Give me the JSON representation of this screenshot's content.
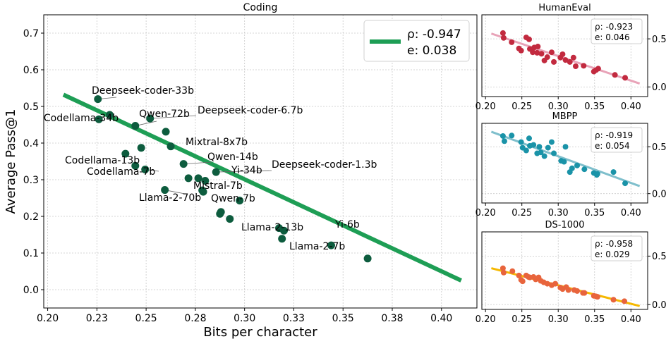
{
  "chart_data": [
    {
      "type": "scatter",
      "title": "Coding",
      "xlabel": "Bits per character",
      "ylabel": "Average Pass@1",
      "xlim": [
        0.198,
        0.418
      ],
      "ylim": [
        -0.05,
        0.75
      ],
      "x_ticks": [
        0.2,
        0.225,
        0.25,
        0.275,
        0.3,
        0.325,
        0.35,
        0.375,
        0.4
      ],
      "x_tick_labels": [
        "0.20",
        "0.23",
        "0.25",
        "0.28",
        "0.30",
        "0.33",
        "0.35",
        "0.38",
        "0.40"
      ],
      "y_ticks": [
        0.0,
        0.1,
        0.2,
        0.3,
        0.4,
        0.5,
        0.6,
        0.7
      ],
      "y_tick_labels": [
        "0.0",
        "0.1",
        "0.2",
        "0.3",
        "0.4",
        "0.5",
        "0.6",
        "0.7"
      ],
      "grid": true,
      "legend_position": "top-right",
      "legend": {
        "rho": "ρ: -0.947",
        "e": "e: 0.038"
      },
      "colors": {
        "points": "#0d5c3e",
        "fit_line": "#1e9e55"
      },
      "fit_line": {
        "x": [
          0.208,
          0.41
        ],
        "y": [
          0.532,
          0.025
        ]
      },
      "points": [
        {
          "label": "Deepseek-coder-33b",
          "x": 0.2255,
          "y": 0.52
        },
        {
          "label": "Codellama-34b",
          "x": 0.226,
          "y": 0.465
        },
        {
          "label": "",
          "x": 0.2315,
          "y": 0.477
        },
        {
          "label": "Qwen-72b",
          "x": 0.2445,
          "y": 0.447
        },
        {
          "label": "Deepseek-coder-6.7b",
          "x": 0.252,
          "y": 0.467
        },
        {
          "label": "",
          "x": 0.26,
          "y": 0.431
        },
        {
          "label": "Mixtral-8x7b",
          "x": 0.2625,
          "y": 0.391
        },
        {
          "label": "",
          "x": 0.2475,
          "y": 0.387
        },
        {
          "label": "Codellama-13b",
          "x": 0.2395,
          "y": 0.371
        },
        {
          "label": "Codellama-7b",
          "x": 0.2495,
          "y": 0.328
        },
        {
          "label": "",
          "x": 0.2445,
          "y": 0.338
        },
        {
          "label": "Qwen-14b",
          "x": 0.269,
          "y": 0.343
        },
        {
          "label": "Deepseek-coder-1.3b",
          "x": 0.2855,
          "y": 0.321
        },
        {
          "label": "Yi-34b",
          "x": 0.28,
          "y": 0.297
        },
        {
          "label": "Mistral-7b",
          "x": 0.2715,
          "y": 0.304
        },
        {
          "label": "",
          "x": 0.2765,
          "y": 0.304
        },
        {
          "label": "Llama-2-70b",
          "x": 0.2595,
          "y": 0.272
        },
        {
          "label": "Qwen-7b",
          "x": 0.2785,
          "y": 0.271
        },
        {
          "label": "",
          "x": 0.279,
          "y": 0.267
        },
        {
          "label": "",
          "x": 0.2975,
          "y": 0.243
        },
        {
          "label": "",
          "x": 0.288,
          "y": 0.212
        },
        {
          "label": "",
          "x": 0.2875,
          "y": 0.207
        },
        {
          "label": "Llama-2-13b",
          "x": 0.2925,
          "y": 0.193
        },
        {
          "label": "Yi-6b",
          "x": 0.3175,
          "y": 0.168
        },
        {
          "label": "",
          "x": 0.32,
          "y": 0.161
        },
        {
          "label": "Llama-2-7b",
          "x": 0.319,
          "y": 0.139
        },
        {
          "label": "",
          "x": 0.344,
          "y": 0.121
        },
        {
          "label": "",
          "x": 0.3625,
          "y": 0.085
        }
      ]
    },
    {
      "type": "scatter",
      "title": "HumanEval",
      "xlim": [
        0.195,
        0.423
      ],
      "ylim": [
        -0.1,
        0.75
      ],
      "x_ticks": [
        0.2,
        0.25,
        0.3,
        0.35,
        0.4
      ],
      "x_tick_labels": [
        "0.20",
        "0.25",
        "0.30",
        "0.35",
        "0.40"
      ],
      "y_ticks": [
        0.0,
        0.5
      ],
      "y_tick_labels": [
        "0.0",
        "0.5"
      ],
      "grid": true,
      "legend_position": "top-right",
      "legend": {
        "rho": "ρ: -0.923",
        "e": "e: 0.046"
      },
      "colors": {
        "points": "#c22a3f",
        "fit_line": "#e8a3b8"
      },
      "fit_line": {
        "x": [
          0.208,
          0.412
        ],
        "y": [
          0.555,
          0.035
        ]
      },
      "points": [
        {
          "x": 0.224,
          "y": 0.56
        },
        {
          "x": 0.225,
          "y": 0.51
        },
        {
          "x": 0.236,
          "y": 0.465
        },
        {
          "x": 0.246,
          "y": 0.4
        },
        {
          "x": 0.249,
          "y": 0.378
        },
        {
          "x": 0.256,
          "y": 0.515
        },
        {
          "x": 0.26,
          "y": 0.495
        },
        {
          "x": 0.261,
          "y": 0.395
        },
        {
          "x": 0.265,
          "y": 0.36
        },
        {
          "x": 0.267,
          "y": 0.41
        },
        {
          "x": 0.271,
          "y": 0.355
        },
        {
          "x": 0.272,
          "y": 0.42
        },
        {
          "x": 0.277,
          "y": 0.345
        },
        {
          "x": 0.281,
          "y": 0.275
        },
        {
          "x": 0.285,
          "y": 0.31
        },
        {
          "x": 0.291,
          "y": 0.36
        },
        {
          "x": 0.294,
          "y": 0.26
        },
        {
          "x": 0.303,
          "y": 0.305
        },
        {
          "x": 0.306,
          "y": 0.34
        },
        {
          "x": 0.31,
          "y": 0.28
        },
        {
          "x": 0.316,
          "y": 0.26
        },
        {
          "x": 0.321,
          "y": 0.305
        },
        {
          "x": 0.324,
          "y": 0.215
        },
        {
          "x": 0.335,
          "y": 0.22
        },
        {
          "x": 0.349,
          "y": 0.16
        },
        {
          "x": 0.352,
          "y": 0.175
        },
        {
          "x": 0.355,
          "y": 0.19
        },
        {
          "x": 0.378,
          "y": 0.125
        },
        {
          "x": 0.392,
          "y": 0.095
        }
      ]
    },
    {
      "type": "scatter",
      "title": "MBPP",
      "xlim": [
        0.195,
        0.423
      ],
      "ylim": [
        -0.1,
        0.75
      ],
      "x_ticks": [
        0.2,
        0.25,
        0.3,
        0.35,
        0.4
      ],
      "x_tick_labels": [
        "0.20",
        "0.25",
        "0.30",
        "0.35",
        "0.40"
      ],
      "y_ticks": [
        0.0,
        0.5
      ],
      "y_tick_labels": [
        "0.0",
        "0.5"
      ],
      "grid": true,
      "legend_position": "top-right",
      "legend": {
        "rho": "ρ: -0.919",
        "e": "e: 0.054"
      },
      "colors": {
        "points": "#1a93a8",
        "fit_line": "#7fbfcc"
      },
      "fit_line": {
        "x": [
          0.208,
          0.412
        ],
        "y": [
          0.66,
          0.08
        ]
      },
      "points": [
        {
          "x": 0.224,
          "y": 0.615
        },
        {
          "x": 0.226,
          "y": 0.56
        },
        {
          "x": 0.236,
          "y": 0.62
        },
        {
          "x": 0.249,
          "y": 0.55
        },
        {
          "x": 0.251,
          "y": 0.49
        },
        {
          "x": 0.256,
          "y": 0.46
        },
        {
          "x": 0.26,
          "y": 0.59
        },
        {
          "x": 0.261,
          "y": 0.51
        },
        {
          "x": 0.266,
          "y": 0.52
        },
        {
          "x": 0.271,
          "y": 0.43
        },
        {
          "x": 0.274,
          "y": 0.5
        },
        {
          "x": 0.276,
          "y": 0.44
        },
        {
          "x": 0.281,
          "y": 0.4
        },
        {
          "x": 0.286,
          "y": 0.49
        },
        {
          "x": 0.291,
          "y": 0.55
        },
        {
          "x": 0.294,
          "y": 0.43
        },
        {
          "x": 0.304,
          "y": 0.35
        },
        {
          "x": 0.308,
          "y": 0.34
        },
        {
          "x": 0.31,
          "y": 0.5
        },
        {
          "x": 0.316,
          "y": 0.23
        },
        {
          "x": 0.319,
          "y": 0.27
        },
        {
          "x": 0.326,
          "y": 0.3
        },
        {
          "x": 0.336,
          "y": 0.26
        },
        {
          "x": 0.349,
          "y": 0.22
        },
        {
          "x": 0.353,
          "y": 0.2
        },
        {
          "x": 0.354,
          "y": 0.21
        },
        {
          "x": 0.376,
          "y": 0.23
        },
        {
          "x": 0.392,
          "y": 0.11
        }
      ]
    },
    {
      "type": "scatter",
      "title": "DS-1000",
      "xlim": [
        0.195,
        0.423
      ],
      "ylim": [
        -0.05,
        0.75
      ],
      "x_ticks": [
        0.2,
        0.25,
        0.3,
        0.35,
        0.4
      ],
      "x_tick_labels": [
        "0.20",
        "0.25",
        "0.30",
        "0.35",
        "0.40"
      ],
      "y_ticks": [
        0.0,
        0.5
      ],
      "y_tick_labels": [
        "0.0",
        "0.5"
      ],
      "grid": true,
      "legend_position": "top-right",
      "legend": {
        "rho": "ρ: -0.958",
        "e": "e: 0.029"
      },
      "colors": {
        "points": "#e8643c",
        "fit_line": "#f5b800"
      },
      "fit_line": {
        "x": [
          0.208,
          0.412
        ],
        "y": [
          0.375,
          -0.015
        ]
      },
      "points": [
        {
          "x": 0.224,
          "y": 0.375
        },
        {
          "x": 0.225,
          "y": 0.33
        },
        {
          "x": 0.237,
          "y": 0.345
        },
        {
          "x": 0.246,
          "y": 0.3
        },
        {
          "x": 0.249,
          "y": 0.255
        },
        {
          "x": 0.251,
          "y": 0.24
        },
        {
          "x": 0.256,
          "y": 0.3
        },
        {
          "x": 0.259,
          "y": 0.285
        },
        {
          "x": 0.261,
          "y": 0.28
        },
        {
          "x": 0.266,
          "y": 0.285
        },
        {
          "x": 0.269,
          "y": 0.26
        },
        {
          "x": 0.273,
          "y": 0.28
        },
        {
          "x": 0.276,
          "y": 0.245
        },
        {
          "x": 0.28,
          "y": 0.23
        },
        {
          "x": 0.285,
          "y": 0.215
        },
        {
          "x": 0.291,
          "y": 0.2
        },
        {
          "x": 0.296,
          "y": 0.215
        },
        {
          "x": 0.303,
          "y": 0.175
        },
        {
          "x": 0.306,
          "y": 0.16
        },
        {
          "x": 0.311,
          "y": 0.18
        },
        {
          "x": 0.314,
          "y": 0.15
        },
        {
          "x": 0.322,
          "y": 0.15
        },
        {
          "x": 0.326,
          "y": 0.14
        },
        {
          "x": 0.334,
          "y": 0.12
        },
        {
          "x": 0.336,
          "y": 0.12
        },
        {
          "x": 0.349,
          "y": 0.09
        },
        {
          "x": 0.352,
          "y": 0.085
        },
        {
          "x": 0.354,
          "y": 0.08
        },
        {
          "x": 0.376,
          "y": 0.05
        },
        {
          "x": 0.391,
          "y": 0.035
        }
      ]
    }
  ]
}
